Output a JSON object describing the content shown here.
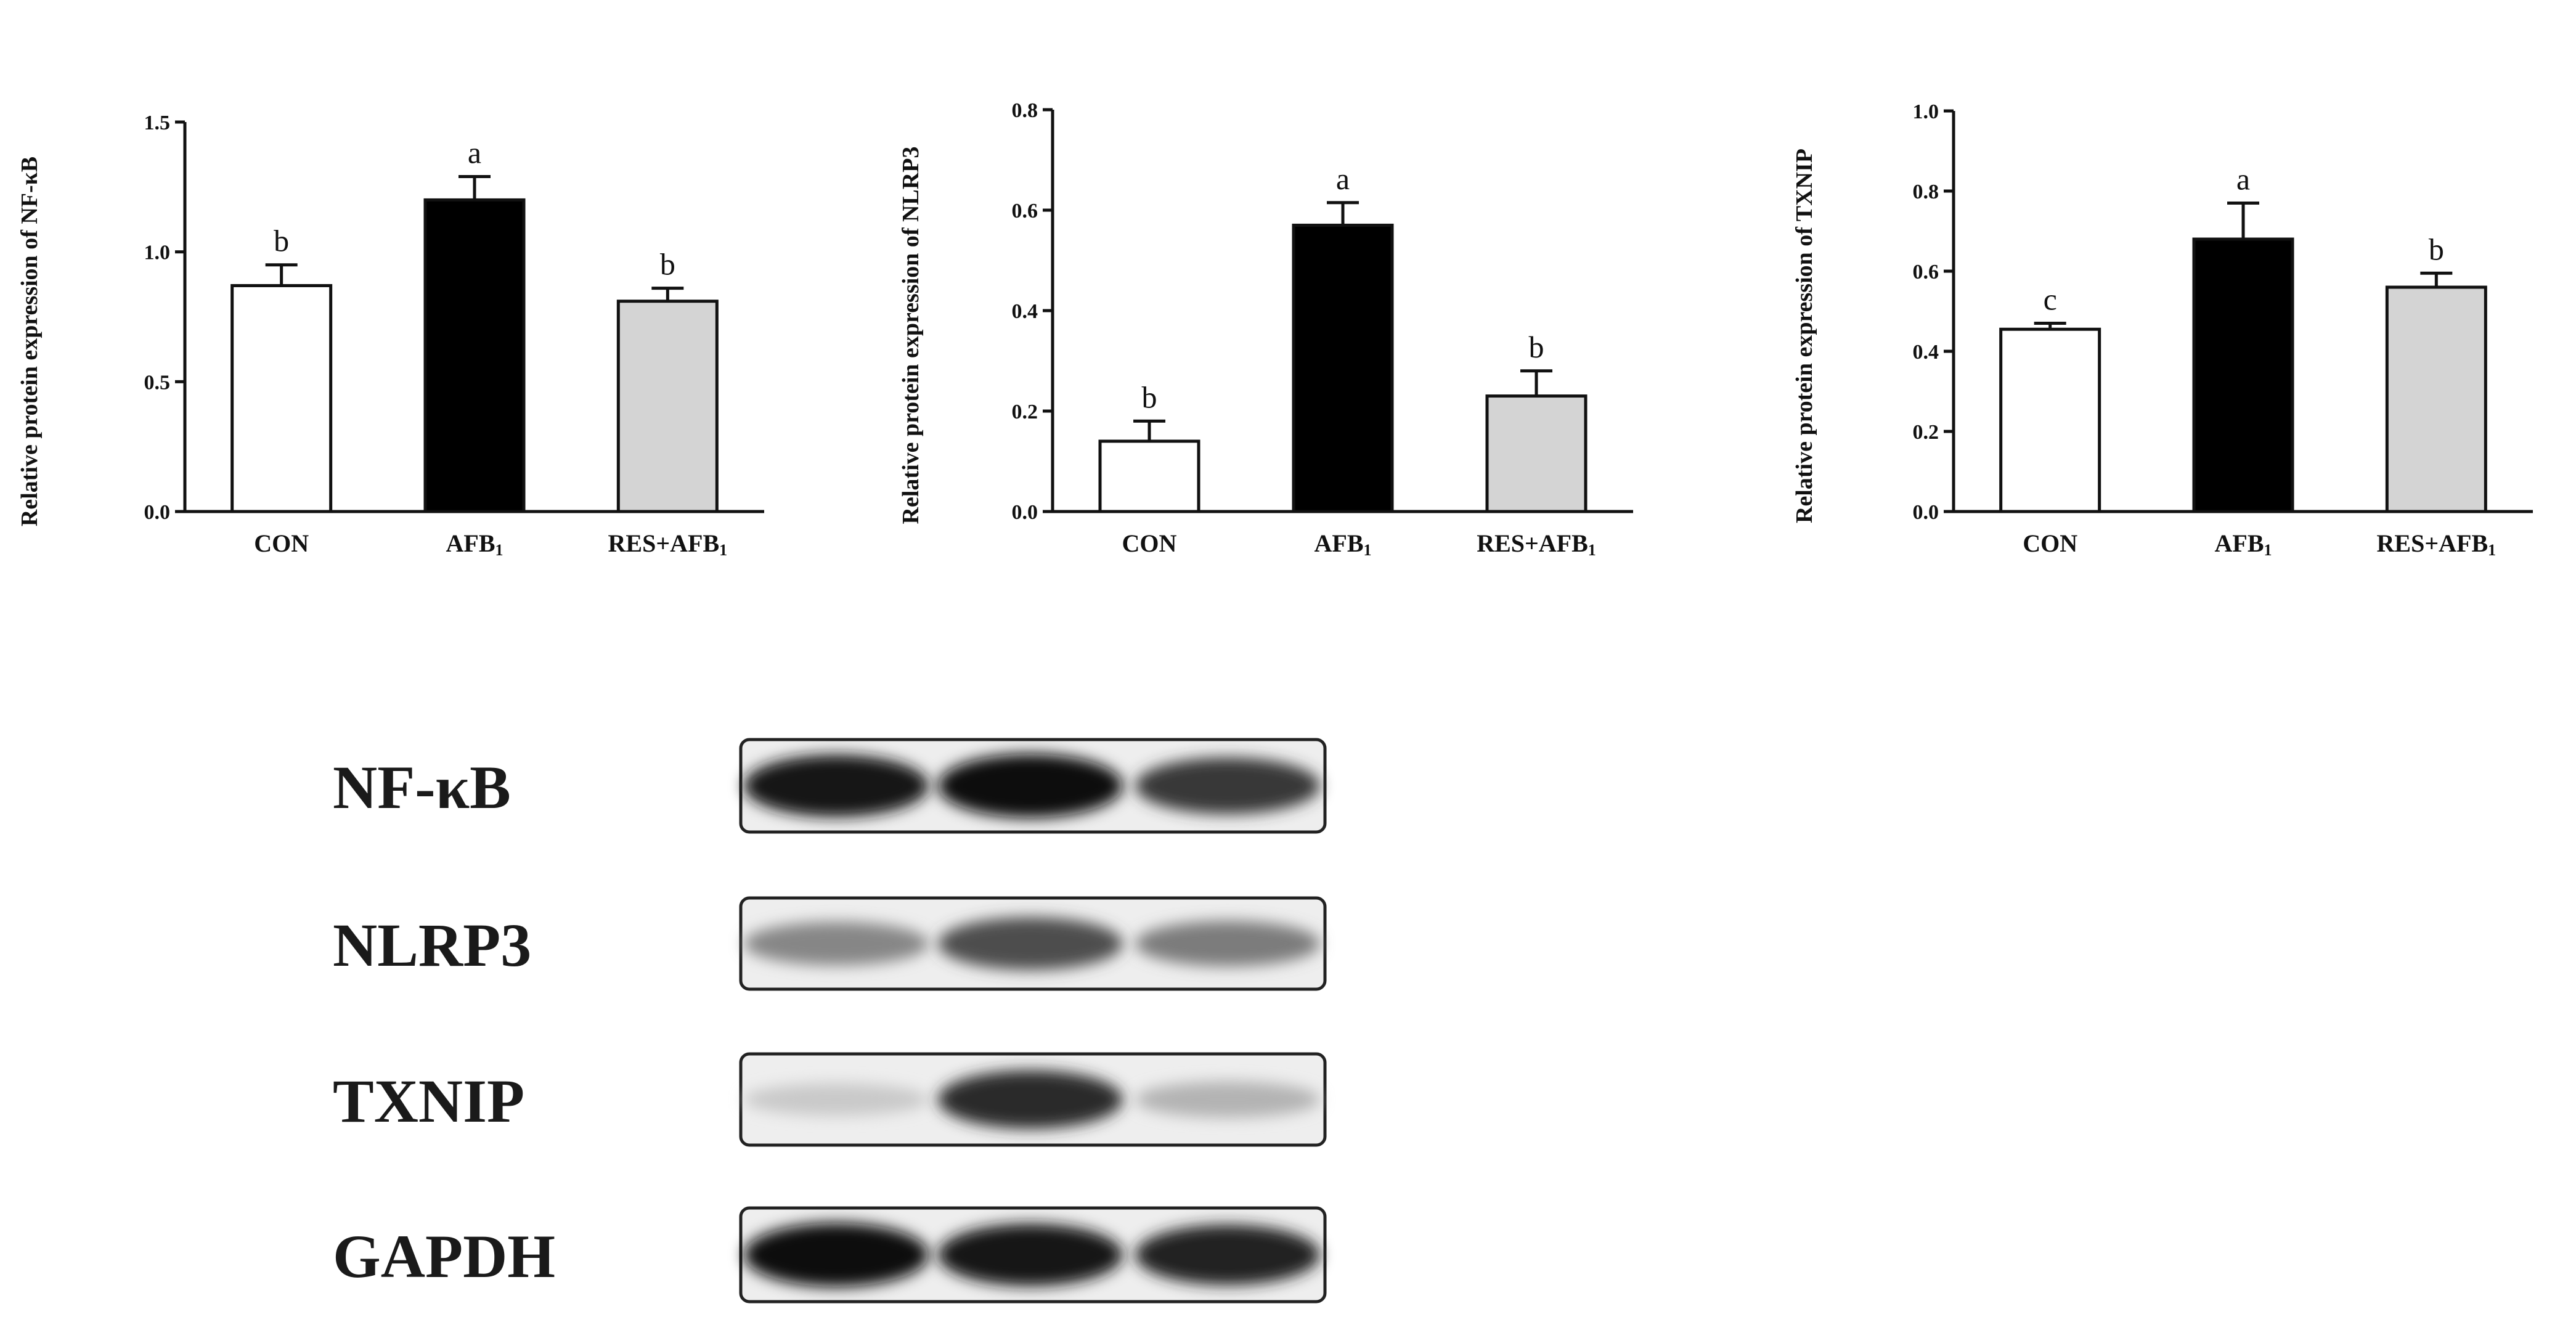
{
  "chart_data": [
    {
      "type": "bar",
      "categories": [
        "CON",
        "AFB1",
        "RES+AFB1"
      ],
      "values": [
        0.87,
        1.2,
        0.81
      ],
      "errors": [
        0.08,
        0.09,
        0.05
      ],
      "significance": [
        "b",
        "a",
        "b"
      ],
      "ylabel": "Relative protein expression of NF-κB",
      "ylim": [
        0,
        1.5
      ],
      "yticks": [
        0.0,
        0.5,
        1.0,
        1.5
      ],
      "ytick_labels": [
        "0.0",
        "0.5",
        "1.0",
        "1.5"
      ],
      "bar_colors": [
        "#ffffff",
        "#000000",
        "#d4d4d4"
      ]
    },
    {
      "type": "bar",
      "categories": [
        "CON",
        "AFB1",
        "RES+AFB1"
      ],
      "values": [
        0.14,
        0.57,
        0.23
      ],
      "errors": [
        0.04,
        0.045,
        0.05
      ],
      "significance": [
        "b",
        "a",
        "b"
      ],
      "ylabel": "Relative protein expression of NLRP3",
      "ylim": [
        0,
        0.8
      ],
      "yticks": [
        0.0,
        0.2,
        0.4,
        0.6,
        0.8
      ],
      "ytick_labels": [
        "0.0",
        "0.2",
        "0.4",
        "0.6",
        "0.8"
      ],
      "bar_colors": [
        "#ffffff",
        "#000000",
        "#d4d4d4"
      ]
    },
    {
      "type": "bar",
      "categories": [
        "CON",
        "AFB1",
        "RES+AFB1"
      ],
      "values": [
        0.455,
        0.68,
        0.56
      ],
      "errors": [
        0.015,
        0.09,
        0.035
      ],
      "significance": [
        "c",
        "a",
        "b"
      ],
      "ylabel": "Relative protein expression of TXNIP",
      "ylim": [
        0,
        1.0
      ],
      "yticks": [
        0.0,
        0.2,
        0.4,
        0.6,
        0.8,
        1.0
      ],
      "ytick_labels": [
        "0.0",
        "0.2",
        "0.4",
        "0.6",
        "0.8",
        "1.0"
      ],
      "bar_colors": [
        "#ffffff",
        "#000000",
        "#d4d4d4"
      ]
    }
  ],
  "western_blot": {
    "labels": [
      "NF-κB",
      "NLRP3",
      "TXNIP",
      "GAPDH"
    ],
    "band_intensity": [
      [
        0.95,
        1.0,
        0.8
      ],
      [
        0.45,
        0.7,
        0.5
      ],
      [
        0.15,
        0.85,
        0.25
      ],
      [
        1.0,
        0.95,
        0.9
      ]
    ]
  }
}
